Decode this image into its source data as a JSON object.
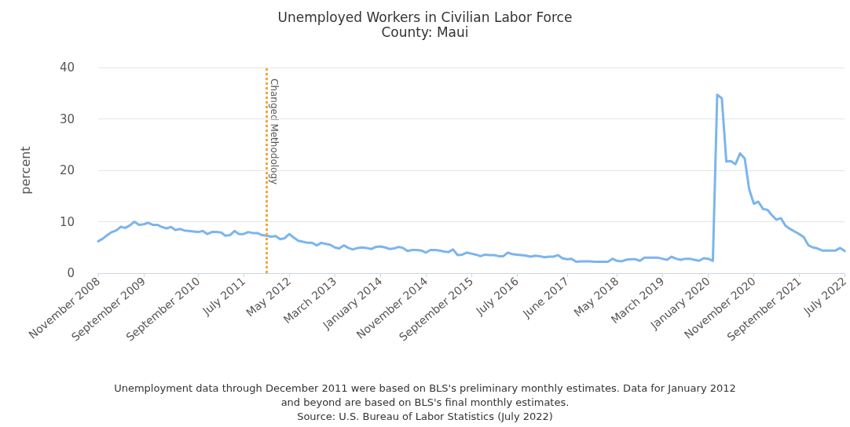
{
  "chart_data": {
    "type": "line",
    "title": "Unemployed Workers in Civilian Labor Force",
    "subtitle": "County: Maui",
    "ylabel": "percent",
    "x": [
      "2008-11",
      "2008-12",
      "2009-01",
      "2009-02",
      "2009-03",
      "2009-04",
      "2009-05",
      "2009-06",
      "2009-07",
      "2009-08",
      "2009-09",
      "2009-10",
      "2009-11",
      "2009-12",
      "2010-01",
      "2010-02",
      "2010-03",
      "2010-04",
      "2010-05",
      "2010-06",
      "2010-07",
      "2010-08",
      "2010-09",
      "2010-10",
      "2010-11",
      "2010-12",
      "2011-01",
      "2011-02",
      "2011-03",
      "2011-04",
      "2011-05",
      "2011-06",
      "2011-07",
      "2011-08",
      "2011-09",
      "2011-10",
      "2011-11",
      "2011-12",
      "2012-01",
      "2012-02",
      "2012-03",
      "2012-04",
      "2012-05",
      "2012-06",
      "2012-07",
      "2012-08",
      "2012-09",
      "2012-10",
      "2012-11",
      "2012-12",
      "2013-01",
      "2013-02",
      "2013-03",
      "2013-04",
      "2013-05",
      "2013-06",
      "2013-07",
      "2013-08",
      "2013-09",
      "2013-10",
      "2013-11",
      "2013-12",
      "2014-01",
      "2014-02",
      "2014-03",
      "2014-04",
      "2014-05",
      "2014-06",
      "2014-07",
      "2014-08",
      "2014-09",
      "2014-10",
      "2014-11",
      "2014-12",
      "2015-01",
      "2015-02",
      "2015-03",
      "2015-04",
      "2015-05",
      "2015-06",
      "2015-07",
      "2015-08",
      "2015-09",
      "2015-10",
      "2015-11",
      "2015-12",
      "2016-01",
      "2016-02",
      "2016-03",
      "2016-04",
      "2016-05",
      "2016-06",
      "2016-07",
      "2016-08",
      "2016-09",
      "2016-10",
      "2016-11",
      "2016-12",
      "2017-01",
      "2017-02",
      "2017-03",
      "2017-04",
      "2017-05",
      "2017-06",
      "2017-07",
      "2017-08",
      "2017-09",
      "2017-10",
      "2017-11",
      "2017-12",
      "2018-01",
      "2018-02",
      "2018-03",
      "2018-04",
      "2018-05",
      "2018-06",
      "2018-07",
      "2018-08",
      "2018-09",
      "2018-10",
      "2018-11",
      "2018-12",
      "2019-01",
      "2019-02",
      "2019-03",
      "2019-04",
      "2019-05",
      "2019-06",
      "2019-07",
      "2019-08",
      "2019-09",
      "2019-10",
      "2019-11",
      "2019-12",
      "2020-01",
      "2020-02",
      "2020-03",
      "2020-04",
      "2020-05",
      "2020-06",
      "2020-07",
      "2020-08",
      "2020-09",
      "2020-10",
      "2020-11",
      "2020-12",
      "2021-01",
      "2021-02",
      "2021-03",
      "2021-04",
      "2021-05",
      "2021-06",
      "2021-07",
      "2021-08",
      "2021-09",
      "2021-10",
      "2021-11",
      "2021-12",
      "2022-01",
      "2022-02",
      "2022-03",
      "2022-04",
      "2022-05",
      "2022-06",
      "2022-07"
    ],
    "series": [
      {
        "color": "#7cb5ec",
        "values": [
          6.2,
          6.7,
          7.4,
          8.0,
          8.3,
          9.0,
          8.8,
          9.3,
          10.0,
          9.4,
          9.5,
          9.8,
          9.4,
          9.4,
          9.0,
          8.7,
          9.0,
          8.4,
          8.6,
          8.3,
          8.2,
          8.1,
          8.0,
          8.2,
          7.6,
          8.0,
          8.0,
          7.9,
          7.3,
          7.4,
          8.2,
          7.6,
          7.6,
          8.0,
          7.8,
          7.8,
          7.4,
          7.3,
          7.1,
          7.2,
          6.6,
          6.8,
          7.6,
          6.9,
          6.3,
          6.1,
          5.9,
          5.9,
          5.4,
          5.9,
          5.7,
          5.5,
          5.0,
          4.8,
          5.4,
          4.9,
          4.6,
          4.9,
          5.0,
          4.9,
          4.7,
          5.1,
          5.2,
          5.0,
          4.7,
          4.8,
          5.1,
          4.9,
          4.3,
          4.5,
          4.5,
          4.4,
          4.0,
          4.5,
          4.5,
          4.4,
          4.2,
          4.1,
          4.6,
          3.5,
          3.6,
          4.0,
          3.8,
          3.6,
          3.3,
          3.6,
          3.5,
          3.5,
          3.3,
          3.3,
          4.0,
          3.7,
          3.6,
          3.5,
          3.4,
          3.2,
          3.4,
          3.3,
          3.1,
          3.2,
          3.2,
          3.5,
          2.9,
          2.7,
          2.8,
          2.2,
          2.3,
          2.3,
          2.3,
          2.2,
          2.2,
          2.2,
          2.2,
          2.8,
          2.4,
          2.3,
          2.6,
          2.7,
          2.7,
          2.4,
          3.0,
          3.0,
          3.0,
          3.0,
          2.8,
          2.6,
          3.2,
          2.8,
          2.6,
          2.8,
          2.8,
          2.6,
          2.4,
          2.9,
          2.8,
          2.4,
          34.7,
          34.0,
          21.7,
          21.8,
          21.2,
          23.3,
          22.3,
          16.3,
          13.5,
          13.9,
          12.5,
          12.3,
          11.3,
          10.4,
          10.7,
          9.2,
          8.6,
          8.1,
          7.6,
          7.0,
          5.4,
          5.0,
          4.8,
          4.4,
          4.4,
          4.4,
          4.4,
          4.9,
          4.3
        ]
      }
    ],
    "xlim": [
      "2008-11",
      "2022-07"
    ],
    "xticks": [
      {
        "value": "2008-11",
        "label": "November 2008"
      },
      {
        "value": "2009-09",
        "label": "September 2009"
      },
      {
        "value": "2010-09",
        "label": "September 2010"
      },
      {
        "value": "2011-07",
        "label": "July 2011"
      },
      {
        "value": "2012-05",
        "label": "May 2012"
      },
      {
        "value": "2013-03",
        "label": "March 2013"
      },
      {
        "value": "2014-01",
        "label": "January 2014"
      },
      {
        "value": "2014-11",
        "label": "November 2014"
      },
      {
        "value": "2015-09",
        "label": "September 2015"
      },
      {
        "value": "2016-07",
        "label": "July 2016"
      },
      {
        "value": "2017-06",
        "label": "June 2017"
      },
      {
        "value": "2018-05",
        "label": "May 2018"
      },
      {
        "value": "2019-03",
        "label": "March 2019"
      },
      {
        "value": "2020-01",
        "label": "January 2020"
      },
      {
        "value": "2020-11",
        "label": "November 2020"
      },
      {
        "value": "2021-09",
        "label": "September 2021"
      },
      {
        "value": "2022-07",
        "label": "July 2022"
      }
    ],
    "ylim": [
      0,
      40
    ],
    "yticks": [
      0,
      10,
      20,
      30,
      40
    ],
    "grid": "y",
    "marker": "none",
    "line_style": "solid",
    "ref_lines": [
      {
        "axis": "x",
        "value": "2011-12",
        "label": "Changed Methodology",
        "color": "#f7a535",
        "line_style": "dotted"
      }
    ],
    "annotations": [
      "Unemployment data through December 2011 were based on BLS's preliminary monthly estimates. Data for January 2012",
      "and beyond are based on BLS's final monthly estimates.",
      "Source: U.S. Bureau of Labor Statistics (July 2022)"
    ]
  }
}
